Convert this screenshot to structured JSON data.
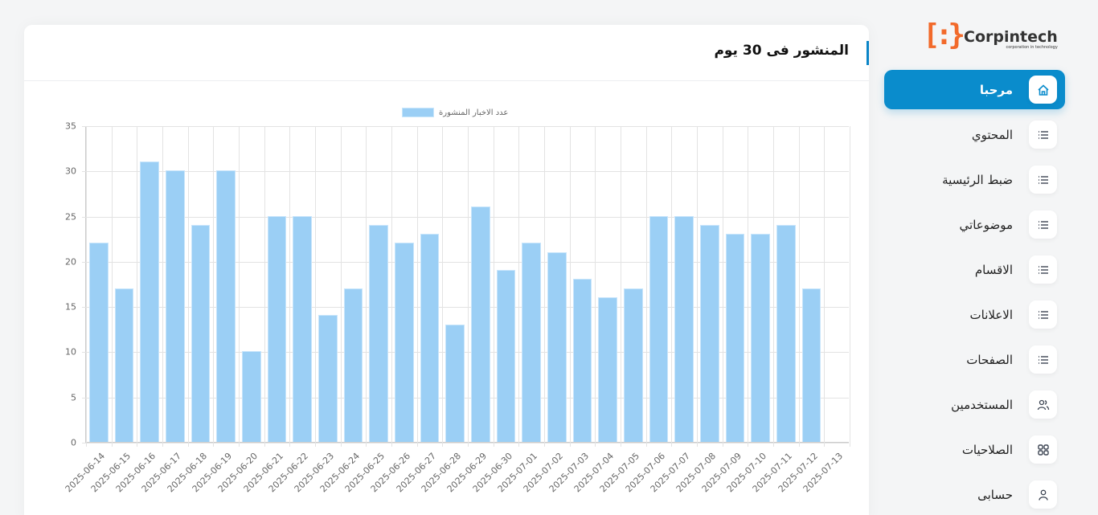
{
  "card": {
    "title": "المنشور فى 30 يوم"
  },
  "chart_data": {
    "type": "bar",
    "title": "المنشور فى 30 يوم",
    "legend": [
      "عدد الاخبار المنشورة"
    ],
    "legend_position": "top",
    "xlabel": "",
    "ylabel": "",
    "ylim": [
      0,
      35
    ],
    "yticks": [
      0,
      5,
      10,
      15,
      20,
      25,
      30,
      35
    ],
    "grid": true,
    "categories": [
      "2025-06-14",
      "2025-06-15",
      "2025-06-16",
      "2025-06-17",
      "2025-06-18",
      "2025-06-19",
      "2025-06-20",
      "2025-06-21",
      "2025-06-22",
      "2025-06-23",
      "2025-06-24",
      "2025-06-25",
      "2025-06-26",
      "2025-06-27",
      "2025-06-28",
      "2025-06-29",
      "2025-06-30",
      "2025-07-01",
      "2025-07-02",
      "2025-07-03",
      "2025-07-04",
      "2025-07-05",
      "2025-07-06",
      "2025-07-07",
      "2025-07-08",
      "2025-07-09",
      "2025-07-10",
      "2025-07-11",
      "2025-07-12",
      "2025-07-13"
    ],
    "series": [
      {
        "name": "عدد الاخبار المنشورة",
        "color": "#9bcff5",
        "values": [
          22,
          17,
          31,
          30,
          24,
          30,
          10,
          25,
          25,
          14,
          17,
          24,
          22,
          23,
          13,
          26,
          19,
          22,
          21,
          18,
          16,
          17,
          25,
          25,
          24,
          23,
          23,
          24,
          17,
          0
        ]
      }
    ]
  },
  "sidebar": {
    "logo": {
      "bracket": "[:}",
      "name": "Corpintech",
      "tagline": "corporation in technology"
    },
    "items": [
      {
        "label": "مرحبا",
        "icon": "home-icon",
        "active": true
      },
      {
        "label": "المحتوي",
        "icon": "list-icon"
      },
      {
        "label": "ضبط الرئيسية",
        "icon": "list-icon"
      },
      {
        "label": "موضوعاتي",
        "icon": "list-icon"
      },
      {
        "label": "الاقسام",
        "icon": "list-icon"
      },
      {
        "label": "الاعلانات",
        "icon": "list-icon"
      },
      {
        "label": "الصفحات",
        "icon": "list-icon"
      },
      {
        "label": "المستخدمين",
        "icon": "users-icon"
      },
      {
        "label": "الصلاحيات",
        "icon": "grid-icon"
      },
      {
        "label": "حسابى",
        "icon": "user-icon"
      }
    ]
  },
  "colors": {
    "accent": "#0a8ccc",
    "bar": "#9bcff5",
    "logo_orange": "#f26a2b"
  }
}
